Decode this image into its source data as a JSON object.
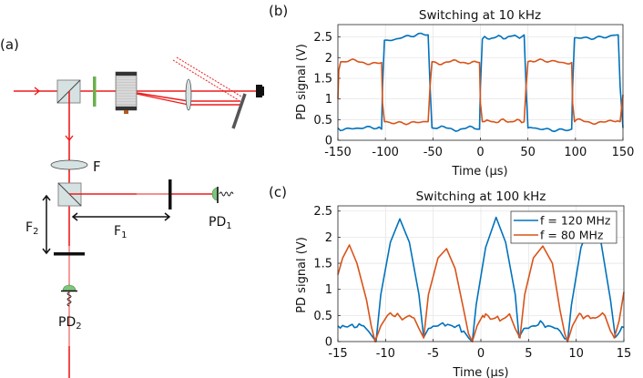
{
  "panels": {
    "a": {
      "label": "(a)"
    },
    "b": {
      "label": "(b)"
    },
    "c": {
      "label": "(c)"
    }
  },
  "diagram": {
    "labels": {
      "F": "F",
      "F1": "F",
      "F1_sub": "1",
      "F2": "F",
      "F2_sub": "2",
      "PD1": "PD",
      "PD1_sub": "1",
      "PD2": "PD",
      "PD2_sub": "2"
    },
    "colors": {
      "beam": "#ee1c1c",
      "waveplate": "#6ab04c",
      "detector": "#7dc67d",
      "optic": "#d6e2e2"
    }
  },
  "chart_data": [
    {
      "type": "line",
      "title": "Switching at 10 kHz",
      "xlabel": "Time (μs)",
      "ylabel": "PD signal (V)",
      "xlim": [
        -150,
        150
      ],
      "ylim": [
        0,
        2.8
      ],
      "xticks": [
        -150,
        -100,
        -50,
        0,
        50,
        100,
        150
      ],
      "xtick_labels": [
        "-150",
        "-100",
        "-50",
        "0",
        "50",
        "100",
        "150"
      ],
      "yticks": [
        0,
        0.5,
        1,
        1.5,
        2,
        2.5
      ],
      "ytick_labels": [
        "0",
        "0.5",
        "1",
        "1.5",
        "2",
        "2.5"
      ],
      "grid": true,
      "series": [
        {
          "name": "f = 120 MHz",
          "color": "#0072BD",
          "x": [
            -150,
            -104,
            -103,
            -101,
            -55,
            -53,
            -51,
            -1,
            0,
            2,
            46,
            48,
            50,
            96,
            97,
            99,
            145,
            147,
            150
          ],
          "y": [
            0.3,
            0.27,
            1.3,
            2.42,
            2.55,
            1.3,
            0.3,
            0.27,
            1.3,
            2.45,
            2.55,
            1.3,
            0.3,
            0.27,
            1.3,
            2.48,
            2.55,
            1.3,
            0.3
          ]
        },
        {
          "name": "f = 80 MHz",
          "color": "#D95319",
          "x": [
            -150,
            -149,
            -147,
            -104,
            -103,
            -101,
            -55,
            -53,
            -51,
            -1,
            0,
            2,
            46,
            48,
            50,
            96,
            97,
            99,
            147,
            150
          ],
          "y": [
            1.0,
            1.7,
            1.9,
            1.88,
            0.9,
            0.45,
            0.45,
            1.3,
            1.9,
            1.88,
            0.9,
            0.45,
            0.45,
            1.3,
            1.9,
            1.88,
            0.9,
            0.45,
            0.45,
            1.1
          ]
        }
      ],
      "levels": {
        "blue_high": 2.5,
        "blue_low": 0.28,
        "orange_high": 1.9,
        "orange_low": 0.45
      }
    },
    {
      "type": "line",
      "title": "Switching at 100 kHz",
      "xlabel": "Time (μs)",
      "ylabel": "PD signal (V)",
      "xlim": [
        -15,
        15
      ],
      "ylim": [
        0,
        2.6
      ],
      "xticks": [
        -15,
        -10,
        -5,
        0,
        5,
        10,
        15
      ],
      "xtick_labels": [
        "-15",
        "-10",
        "-5",
        "0",
        "5",
        "10",
        "15"
      ],
      "yticks": [
        0,
        0.5,
        1,
        1.5,
        2,
        2.5
      ],
      "ytick_labels": [
        "0",
        "0.5",
        "1",
        "1.5",
        "2",
        "2.5"
      ],
      "grid": true,
      "legend": {
        "position": "upper right",
        "entries": [
          "f = 120 MHz",
          "f = 80 MHz"
        ]
      },
      "series": [
        {
          "name": "f = 120 MHz",
          "color": "#0072BD",
          "x": [
            -15,
            -14,
            -13.5,
            -13,
            -12.3,
            -11.8,
            -11.2,
            -11,
            -10.5,
            -9.5,
            -8.5,
            -7.5,
            -6.5,
            -6.0,
            -5.5,
            -4.5,
            -3.5,
            -3,
            -2.5,
            -1.8,
            -1.2,
            -0.9,
            -0.5,
            0.5,
            1.6,
            2.6,
            3.6,
            4.0,
            4.5,
            5.5,
            6.5,
            7,
            7.5,
            8.3,
            8.8,
            9.1,
            9.5,
            10.5,
            11.6,
            12.6,
            13.6,
            14.1,
            14.6,
            15
          ],
          "y": [
            0.3,
            0.28,
            0.33,
            0.28,
            0.3,
            0.2,
            0.05,
            0.0,
            0.9,
            1.9,
            2.35,
            1.9,
            0.9,
            0.08,
            0.25,
            0.3,
            0.33,
            0.3,
            0.3,
            0.2,
            0.05,
            0.0,
            0.7,
            1.8,
            2.38,
            1.9,
            0.9,
            0.08,
            0.25,
            0.3,
            0.35,
            0.3,
            0.28,
            0.2,
            0.05,
            0.0,
            0.7,
            1.8,
            2.35,
            1.9,
            0.8,
            0.08,
            0.2,
            0.27
          ]
        },
        {
          "name": "f = 80 MHz",
          "color": "#D95319",
          "x": [
            -15,
            -14.5,
            -13.8,
            -13,
            -12,
            -11.5,
            -11.1,
            -10.5,
            -9.8,
            -9.5,
            -9,
            -8.5,
            -8,
            -7.5,
            -7,
            -6.5,
            -6.0,
            -5.5,
            -4.5,
            -3.6,
            -2.7,
            -1.8,
            -1.3,
            -0.9,
            -0.4,
            0.2,
            0.5,
            1,
            1.5,
            2.5,
            3,
            3.6,
            4.1,
            4.6,
            5.5,
            6.5,
            7.5,
            8.3,
            8.8,
            9.1,
            9.6,
            10.2,
            10.5,
            11,
            12,
            12.5,
            13,
            13.6,
            14.0,
            14.5,
            15
          ],
          "y": [
            1.28,
            1.6,
            1.85,
            1.5,
            0.8,
            0.3,
            0.0,
            0.3,
            0.5,
            0.55,
            0.48,
            0.48,
            0.45,
            0.5,
            0.45,
            0.25,
            0.07,
            0.9,
            1.6,
            1.78,
            1.4,
            0.6,
            0.15,
            0.0,
            0.3,
            0.5,
            0.53,
            0.43,
            0.45,
            0.45,
            0.53,
            0.25,
            0.07,
            0.9,
            1.6,
            1.83,
            1.5,
            0.6,
            0.15,
            0.0,
            0.3,
            0.5,
            0.52,
            0.48,
            0.45,
            0.5,
            0.5,
            0.2,
            0.07,
            0.4,
            0.95
          ]
        }
      ]
    }
  ]
}
